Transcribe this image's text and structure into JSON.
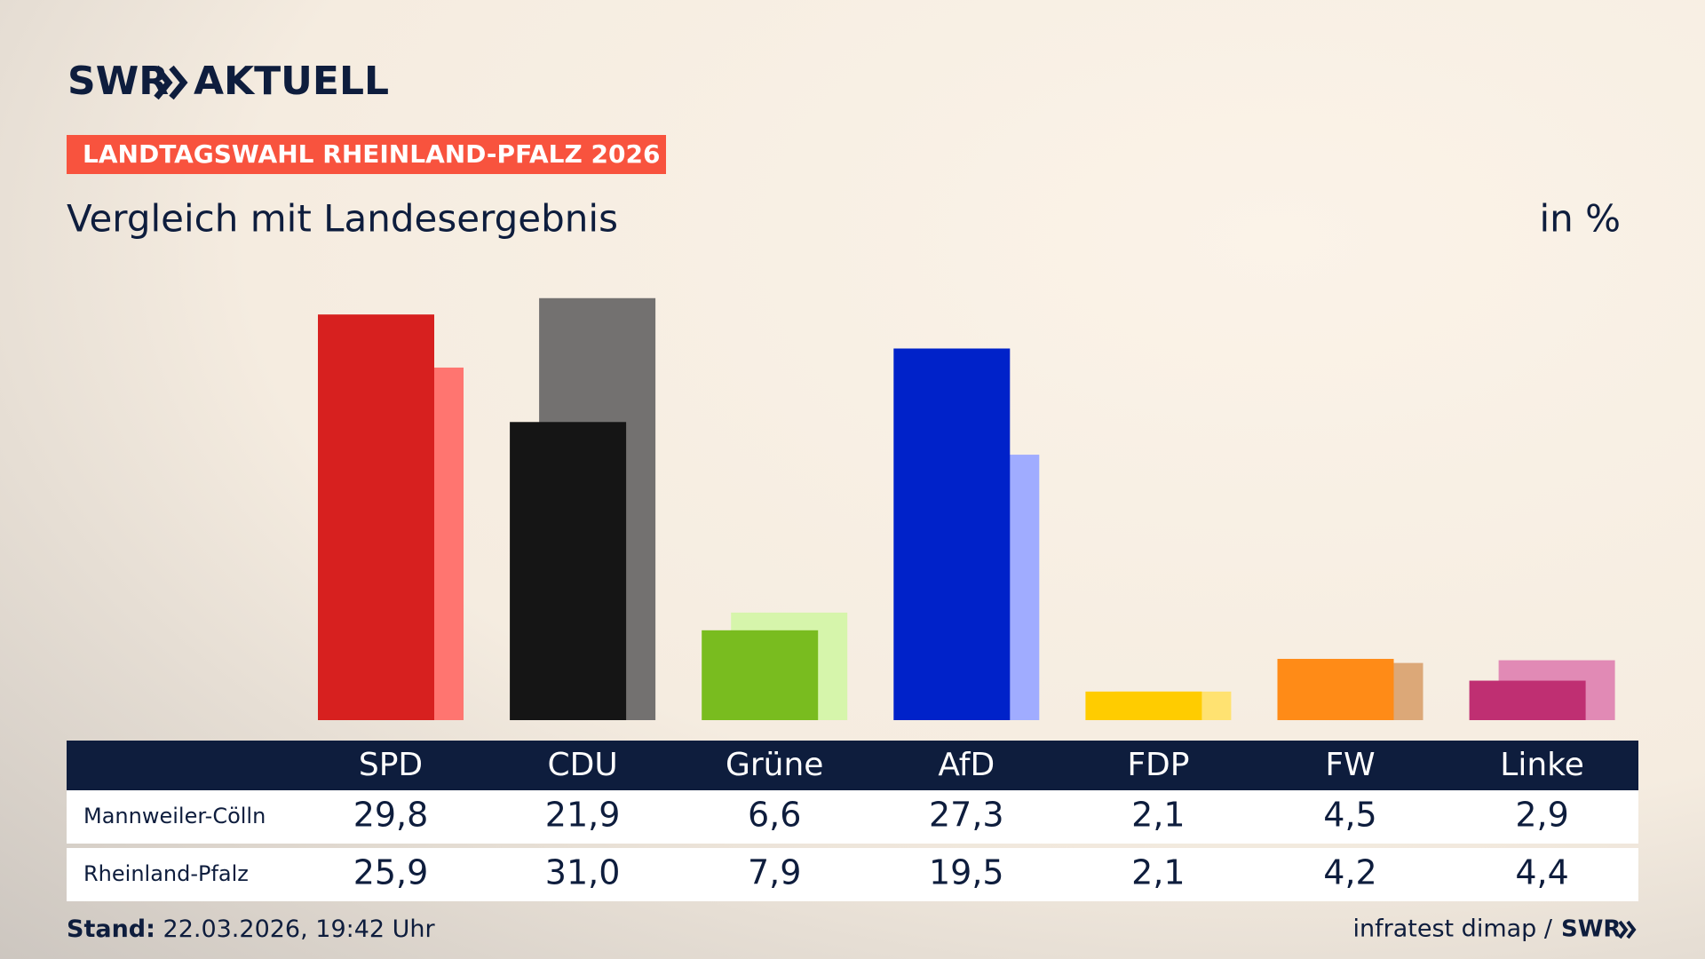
{
  "brand": {
    "name": "SWR",
    "product": "AKTUELL"
  },
  "badge": "LANDTAGSWAHL RHEINLAND-PFALZ 2026",
  "chart_data": {
    "type": "bar",
    "title": "Vergleich mit Landesergebnis",
    "unit": "in %",
    "categories": [
      "SPD",
      "CDU",
      "Grüne",
      "AfD",
      "FDP",
      "FW",
      "Linke"
    ],
    "series": [
      {
        "name": "Mannweiler-Cölln",
        "colors": [
          "#d7201f",
          "#151515",
          "#79bc1f",
          "#0022c9",
          "#ffcc00",
          "#ff8b17",
          "#bf2f72"
        ],
        "values": [
          29.8,
          21.9,
          6.6,
          27.3,
          2.1,
          4.5,
          2.9
        ],
        "value_labels": [
          "29,8",
          "21,9",
          "6,6",
          "27,3",
          "2,1",
          "4,5",
          "2,9"
        ]
      },
      {
        "name": "Rheinland-Pfalz",
        "colors": [
          "#ff7570",
          "#737170",
          "#d6f5ab",
          "#a0acff",
          "#ffe271",
          "#dca878",
          "#e18ab5"
        ],
        "values": [
          25.9,
          31.0,
          7.9,
          19.5,
          2.1,
          4.2,
          4.4
        ],
        "value_labels": [
          "25,9",
          "31,0",
          "7,9",
          "19,5",
          "2,1",
          "4,2",
          "4,4"
        ]
      }
    ]
  },
  "footer": {
    "stand_label": "Stand:",
    "stand": "22.03.2026, 19:42 Uhr",
    "source": "infratest dimap /",
    "logo": "SWR"
  }
}
